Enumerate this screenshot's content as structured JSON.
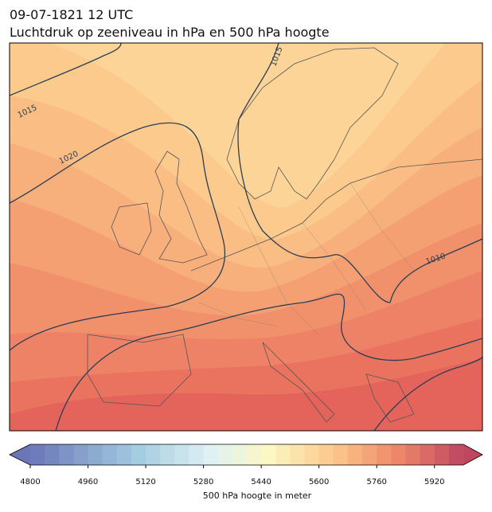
{
  "header": {
    "date": "09-07-1821 12 UTC",
    "title": "Luchtdruk op zeeniveau in hPa en 500 hPa hoogte"
  },
  "map": {
    "contour_labels": [
      "1015",
      "1020",
      "1010",
      "1015"
    ]
  },
  "colorbar": {
    "label": "500 hPa hoogte in meter",
    "lim": [
      4800,
      6000
    ],
    "ticks": [
      4800,
      4960,
      5120,
      5280,
      5440,
      5600,
      5760,
      5920
    ]
  }
}
